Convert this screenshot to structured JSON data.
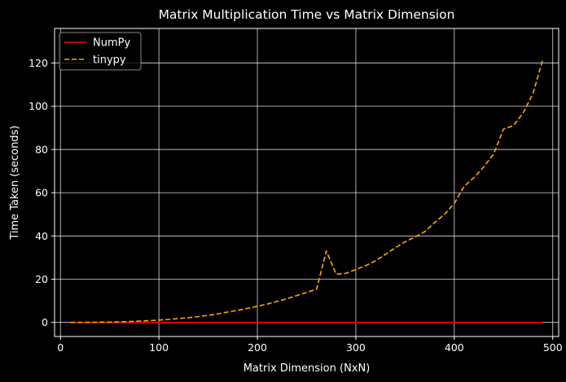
{
  "chart_data": {
    "type": "line",
    "title": "Matrix Multiplication Time vs Matrix Dimension",
    "xlabel": "Matrix Dimension (NxN)",
    "ylabel": "Time Taken (seconds)",
    "xlim": [
      -6,
      506
    ],
    "ylim": [
      -6.5,
      136
    ],
    "xticks": [
      0,
      100,
      200,
      300,
      400,
      500
    ],
    "yticks": [
      0,
      20,
      40,
      60,
      80,
      100,
      120
    ],
    "grid": true,
    "legend_position": "top-left",
    "background": "#000000",
    "x": [
      10,
      20,
      30,
      40,
      50,
      60,
      70,
      80,
      90,
      100,
      110,
      120,
      130,
      140,
      150,
      160,
      170,
      180,
      190,
      200,
      210,
      220,
      230,
      240,
      250,
      260,
      270,
      280,
      290,
      300,
      310,
      320,
      330,
      340,
      350,
      360,
      370,
      380,
      390,
      400,
      410,
      420,
      430,
      440,
      450,
      460,
      470,
      480,
      490
    ],
    "series": [
      {
        "name": "NumPy",
        "color": "#ff0000",
        "style": "solid",
        "values": [
          0,
          0,
          0,
          0,
          0,
          0,
          0,
          0,
          0,
          0,
          0,
          0,
          0,
          0,
          0,
          0,
          0,
          0,
          0,
          0,
          0,
          0,
          0,
          0,
          0,
          0,
          0,
          0,
          0,
          0,
          0,
          0,
          0,
          0,
          0,
          0,
          0,
          0,
          0,
          0,
          0,
          0,
          0,
          0,
          0,
          0,
          0,
          0,
          0
        ]
      },
      {
        "name": "tinypy",
        "color": "#ffa500",
        "style": "dashed",
        "values": [
          0,
          0.02,
          0.05,
          0.1,
          0.17,
          0.27,
          0.4,
          0.6,
          0.85,
          1.1,
          1.4,
          1.8,
          2.2,
          2.7,
          3.3,
          4.0,
          4.8,
          5.6,
          6.5,
          7.5,
          8.5,
          9.7,
          11.0,
          12.4,
          13.9,
          15.3,
          33.0,
          22.3,
          22.7,
          24.5,
          26.3,
          28.5,
          31.5,
          34.5,
          37.3,
          39.5,
          42.0,
          46.2,
          50.0,
          55.0,
          63.0,
          67.0,
          72.0,
          78.0,
          89.5,
          91.0,
          97.0,
          106.0,
          122.0
        ]
      }
    ]
  }
}
